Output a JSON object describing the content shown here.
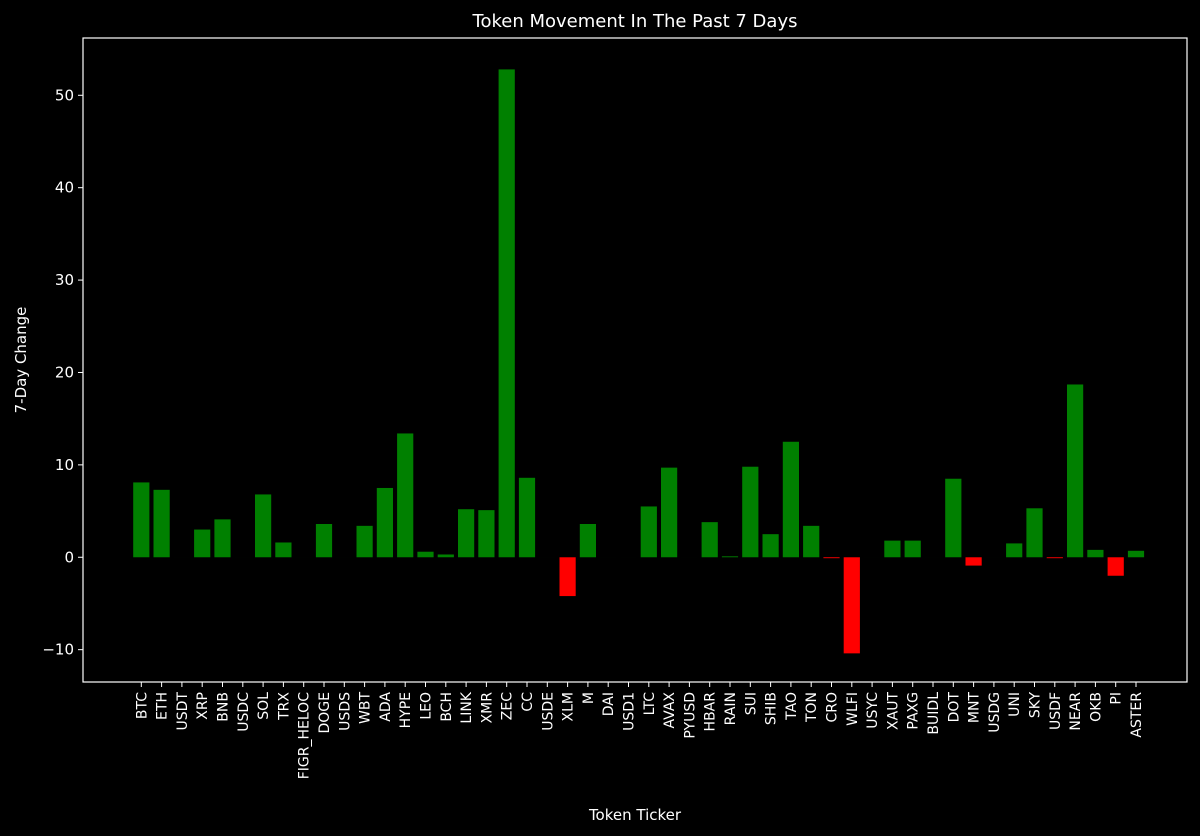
{
  "chart_data": {
    "type": "bar",
    "title": "Token Movement In The Past 7 Days",
    "xlabel": "Token Ticker",
    "ylabel": "7-Day Change",
    "categories": [
      "BTC",
      "ETH",
      "USDT",
      "XRP",
      "BNB",
      "USDC",
      "SOL",
      "TRX",
      "FIGR_HELOC",
      "DOGE",
      "USDS",
      "WBT",
      "ADA",
      "HYPE",
      "LEO",
      "BCH",
      "LINK",
      "XMR",
      "ZEC",
      "CC",
      "USDE",
      "XLM",
      "M",
      "DAI",
      "USD1",
      "LTC",
      "AVAX",
      "PYUSD",
      "HBAR",
      "RAIN",
      "SUI",
      "SHIB",
      "TAO",
      "TON",
      "CRO",
      "WLFI",
      "USYC",
      "XAUT",
      "PAXG",
      "BUIDL",
      "DOT",
      "MNT",
      "USDG",
      "UNI",
      "SKY",
      "USDF",
      "NEAR",
      "OKB",
      "PI",
      "ASTER"
    ],
    "values": [
      8.1,
      7.3,
      0.0,
      3.0,
      4.1,
      0.0,
      6.8,
      1.6,
      0.0,
      3.6,
      0.0,
      3.4,
      7.5,
      13.4,
      0.6,
      0.3,
      5.2,
      5.1,
      52.8,
      8.6,
      0.0,
      -4.2,
      3.6,
      0.0,
      0.0,
      5.5,
      9.7,
      0.0,
      3.8,
      0.1,
      9.8,
      2.5,
      12.5,
      3.4,
      -0.1,
      -10.4,
      0.0,
      1.8,
      1.8,
      0.0,
      8.5,
      -0.9,
      0.0,
      1.5,
      5.3,
      -0.1,
      18.7,
      0.8,
      -2.0,
      0.7
    ],
    "yticks": [
      -10,
      0,
      10,
      20,
      30,
      40,
      50
    ],
    "ylim": [
      -13.5,
      56.2
    ],
    "positive_color": "#008000",
    "negative_color": "#ff0000",
    "background_color": "#000000",
    "axes_color": "#ffffff",
    "grid": false
  }
}
